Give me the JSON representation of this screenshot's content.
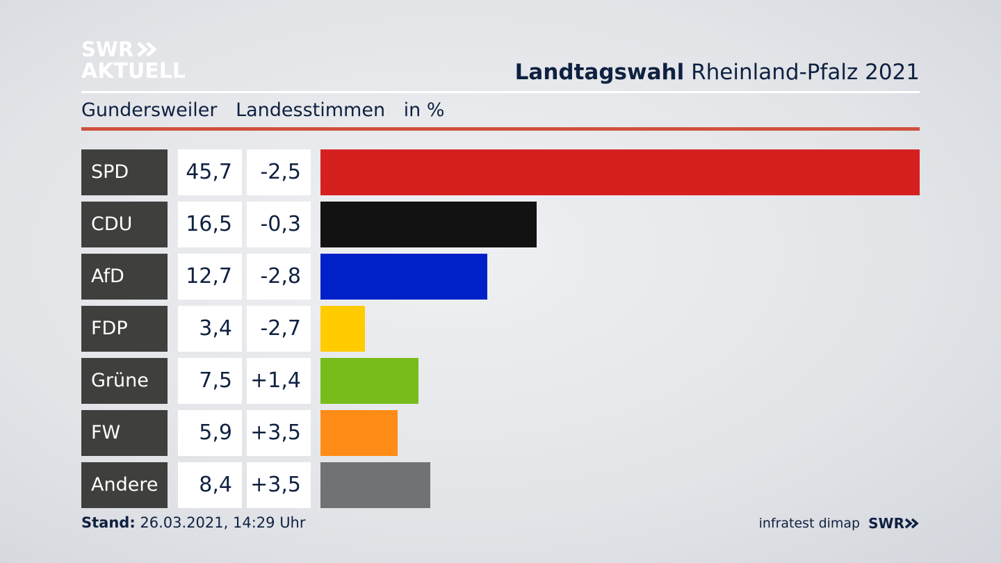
{
  "logo": {
    "line1": "SWR",
    "line2": "AKTUELL"
  },
  "header": {
    "title_bold": "Landtagswahl",
    "title_rest": "Rheinland-Pfalz 2021"
  },
  "subtitle": {
    "place": "Gundersweiler",
    "type": "Landesstimmen",
    "unit": "in %"
  },
  "chart_data": {
    "type": "bar",
    "title": "Landtagswahl Rheinland-Pfalz 2021",
    "subtitle": "Gundersweiler Landesstimmen in %",
    "categories": [
      "SPD",
      "CDU",
      "AfD",
      "FDP",
      "Grüne",
      "FW",
      "Andere"
    ],
    "values": [
      45.7,
      16.5,
      12.7,
      3.4,
      7.5,
      5.9,
      8.4
    ],
    "values_label": [
      "45,7",
      "16,5",
      "12,7",
      "3,4",
      "7,5",
      "5,9",
      "8,4"
    ],
    "changes_label": [
      "-2,5",
      "-0,3",
      "-2,8",
      "-2,7",
      "+1,4",
      "+3,5",
      "+3,5"
    ],
    "colors": [
      "#d62020",
      "#121212",
      "#0021c8",
      "#ffcc00",
      "#78bc1b",
      "#ff8c17",
      "#717274"
    ],
    "xlim": [
      0,
      45.7
    ],
    "orientation": "horizontal"
  },
  "footer": {
    "stand_label": "Stand:",
    "stand_value": "26.03.2021, 14:29 Uhr"
  },
  "source": {
    "institute": "infratest dimap",
    "broadcaster": "SWR"
  }
}
